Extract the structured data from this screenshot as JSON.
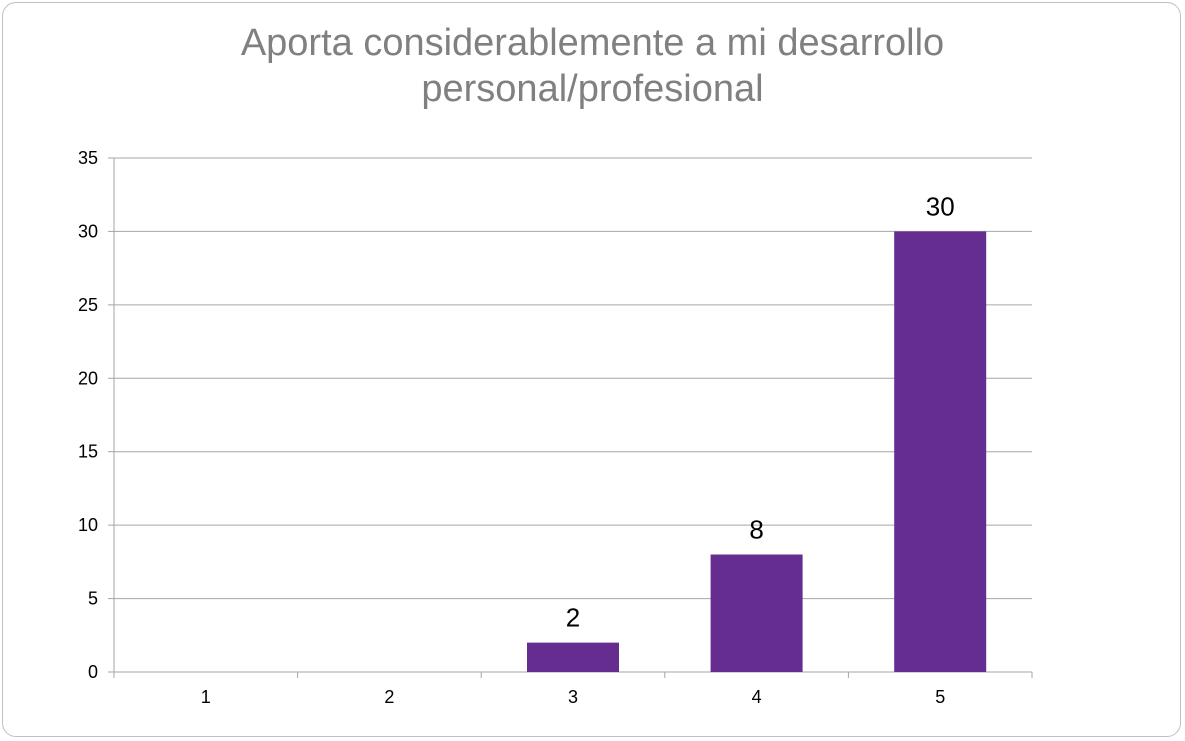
{
  "chart_data": {
    "type": "bar",
    "title_lines": [
      "Aporta considerablemente a mi desarrollo",
      "personal/profesional"
    ],
    "categories": [
      "1",
      "2",
      "3",
      "4",
      "5"
    ],
    "values": [
      0,
      0,
      2,
      8,
      30
    ],
    "data_labels": [
      "",
      "",
      "2",
      "8",
      "30"
    ],
    "xlabel": "",
    "ylabel": "",
    "ylim": [
      0,
      35
    ],
    "yticks": [
      "0",
      "5",
      "10",
      "15",
      "20",
      "25",
      "30",
      "35"
    ],
    "grid": true,
    "legend": "none",
    "bar_color": "#662d91",
    "title_color": "#808080",
    "grid_color": "#a6a6a6"
  }
}
